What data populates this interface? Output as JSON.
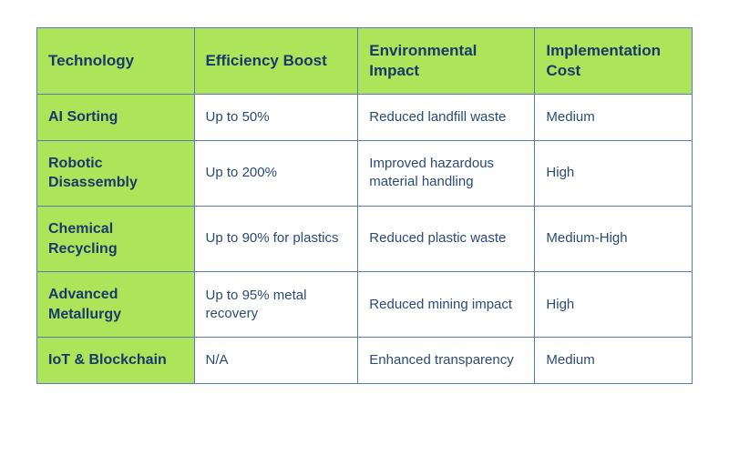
{
  "table": {
    "type": "table",
    "header_bg": "#aee45a",
    "header_fg": "#163a6b",
    "rowhdr_bg": "#aee45a",
    "rowhdr_fg": "#163a6b",
    "cell_bg": "#ffffff",
    "cell_fg": "#2b4a7a",
    "border_color": "#5a7bb5",
    "header_fontsize": 17,
    "cell_fontsize": 15,
    "columns": [
      "Technology",
      "Efficiency Boost",
      "Environmental Impact",
      "Implementation Cost"
    ],
    "column_widths_pct": [
      24,
      25,
      27,
      24
    ],
    "rows": [
      [
        "AI Sorting",
        "Up to 50%",
        "Reduced landfill waste",
        "Medium"
      ],
      [
        "Robotic Disassembly",
        "Up to 200%",
        "Improved hazardous material handling",
        "High"
      ],
      [
        "Chemical Recycling",
        "Up to 90% for plastics",
        "Reduced plastic waste",
        "Medium-High"
      ],
      [
        "Advanced Metallurgy",
        "Up to 95% metal recovery",
        "Reduced mining impact",
        "High"
      ],
      [
        "IoT & Blockchain",
        "N/A",
        "Enhanced transparency",
        "Medium"
      ]
    ]
  }
}
